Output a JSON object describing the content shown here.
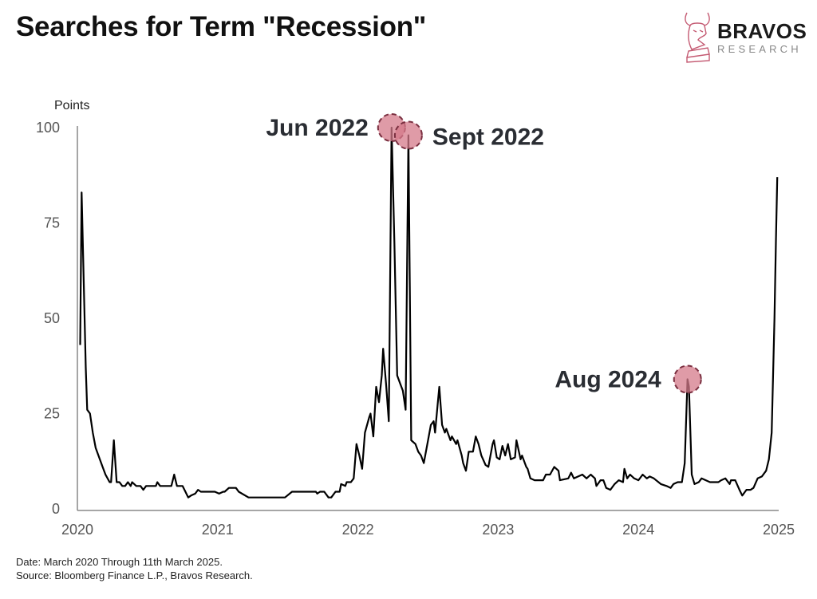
{
  "title": "Searches for Term \"Recession\"",
  "logo": {
    "brand": "BRAVOS",
    "sub": "RESEARCH"
  },
  "footnotes": {
    "date": "Date: March 2020 Through 11th March 2025.",
    "source": "Source: Bloomberg Finance L.P., Bravos Research."
  },
  "colors": {
    "line": "#000000",
    "highlight": "#d47a8a",
    "highlight_stroke": "#7a2f40",
    "axis": "#888888"
  },
  "chart_data": {
    "type": "line",
    "title": "Searches for Term \"Recession\"",
    "ylabel": "Points",
    "xlabel": "",
    "ylim": [
      0,
      100
    ],
    "xlim": [
      2020,
      2025
    ],
    "yticks": [
      0,
      25,
      50,
      75,
      100
    ],
    "xticks": [
      2020,
      2021,
      2022,
      2023,
      2024,
      2025
    ],
    "grid": false,
    "x": [
      2020.02,
      2020.03,
      2020.06,
      2020.07,
      2020.09,
      2020.11,
      2020.13,
      2020.15,
      2020.18,
      2020.2,
      2020.23,
      2020.24,
      2020.26,
      2020.28,
      2020.3,
      2020.32,
      2020.34,
      2020.36,
      2020.38,
      2020.39,
      2020.42,
      2020.45,
      2020.47,
      2020.49,
      2020.56,
      2020.57,
      2020.59,
      2020.67,
      2020.69,
      2020.71,
      2020.75,
      2020.77,
      2020.79,
      2020.81,
      2020.84,
      2020.86,
      2020.88,
      2020.98,
      2021.01,
      2021.04,
      2021.05,
      2021.08,
      2021.13,
      2021.15,
      2021.22,
      2021.48,
      2021.53,
      2021.7,
      2021.71,
      2021.73,
      2021.76,
      2021.79,
      2021.81,
      2021.84,
      2021.87,
      2021.88,
      2021.91,
      2021.92,
      2021.95,
      2021.97,
      2021.99,
      2022.01,
      2022.03,
      2022.05,
      2022.08,
      2022.09,
      2022.11,
      2022.13,
      2022.15,
      2022.17,
      2022.18,
      2022.2,
      2022.22,
      2022.24,
      2022.26,
      2022.28,
      2022.3,
      2022.32,
      2022.34,
      2022.36,
      2022.38,
      2022.41,
      2022.43,
      2022.45,
      2022.47,
      2022.5,
      2022.52,
      2022.54,
      2022.55,
      2022.57,
      2022.58,
      2022.6,
      2022.62,
      2022.63,
      2022.66,
      2022.67,
      2022.7,
      2022.71,
      2022.74,
      2022.75,
      2022.77,
      2022.79,
      2022.82,
      2022.84,
      2022.86,
      2022.88,
      2022.91,
      2022.93,
      2022.96,
      2022.97,
      2022.99,
      2023.01,
      2023.03,
      2023.05,
      2023.07,
      2023.09,
      2023.12,
      2023.13,
      2023.16,
      2023.17,
      2023.2,
      2023.21,
      2023.23,
      2023.26,
      2023.29,
      2023.32,
      2023.34,
      2023.37,
      2023.4,
      2023.43,
      2023.44,
      2023.5,
      2023.52,
      2023.54,
      2023.6,
      2023.63,
      2023.66,
      2023.69,
      2023.7,
      2023.73,
      2023.75,
      2023.77,
      2023.8,
      2023.83,
      2023.86,
      2023.89,
      2023.9,
      2023.92,
      2023.94,
      2023.97,
      2024.0,
      2024.03,
      2024.06,
      2024.08,
      2024.11,
      2024.16,
      2024.2,
      2024.23,
      2024.25,
      2024.28,
      2024.31,
      2024.33,
      2024.35,
      2024.36,
      2024.38,
      2024.4,
      2024.43,
      2024.45,
      2024.48,
      2024.51,
      2024.54,
      2024.57,
      2024.59,
      2024.62,
      2024.65,
      2024.66,
      2024.69,
      2024.72,
      2024.74,
      2024.77,
      2024.8,
      2024.82,
      2024.85,
      2024.88,
      2024.91,
      2024.93,
      2024.95,
      2024.97,
      2024.98,
      2024.99
    ],
    "y": [
      43,
      83,
      37,
      26,
      25,
      20,
      16,
      14,
      11,
      9,
      7,
      7,
      18,
      7,
      7,
      6,
      6,
      7,
      6,
      7,
      6,
      6,
      5,
      6,
      6,
      7,
      6,
      6,
      9,
      6,
      6,
      4.5,
      3,
      3.5,
      4,
      5,
      4.5,
      4.5,
      4,
      4.5,
      4.5,
      5.5,
      5.5,
      4.5,
      3,
      3,
      4.5,
      4.5,
      4,
      4.5,
      4.5,
      3,
      3,
      4.5,
      4.5,
      6.5,
      6,
      7,
      7,
      8,
      17,
      14,
      10.5,
      20,
      24,
      25,
      19,
      32,
      28,
      35,
      42,
      33,
      23,
      100,
      70,
      35,
      33,
      31,
      26,
      98,
      18,
      17,
      15,
      14,
      12,
      18,
      22,
      23,
      20,
      28,
      32,
      22,
      20,
      21,
      18,
      19,
      17,
      18,
      14,
      12,
      10,
      15,
      15,
      19,
      17,
      14,
      11.5,
      11,
      17,
      18,
      13.5,
      13,
      16.5,
      14,
      17,
      13,
      13.5,
      18,
      13,
      14,
      11,
      10.5,
      8,
      7.5,
      7.5,
      7.5,
      9,
      9,
      11,
      10,
      7.5,
      8,
      9.5,
      8,
      9,
      8,
      9,
      8,
      6,
      7.5,
      7.5,
      5.5,
      5,
      6.5,
      7.5,
      7,
      10.5,
      8,
      9,
      8,
      7.5,
      9,
      8,
      8.5,
      8,
      6.5,
      6,
      5.5,
      6.5,
      7,
      7,
      12,
      34,
      32,
      9,
      6.5,
      7,
      8,
      7.5,
      7,
      7,
      7,
      7.5,
      8,
      6.5,
      7.5,
      7.5,
      5,
      3.5,
      5,
      5,
      5.5,
      8,
      8.5,
      10,
      13,
      20,
      50,
      70,
      87
    ],
    "annotations": [
      {
        "label": "Jun 2022",
        "x": 2022.24,
        "y": 100
      },
      {
        "label": "Sept 2022",
        "x": 2022.36,
        "y": 98
      },
      {
        "label": "Aug 2024",
        "x": 2024.35,
        "y": 34
      }
    ]
  }
}
